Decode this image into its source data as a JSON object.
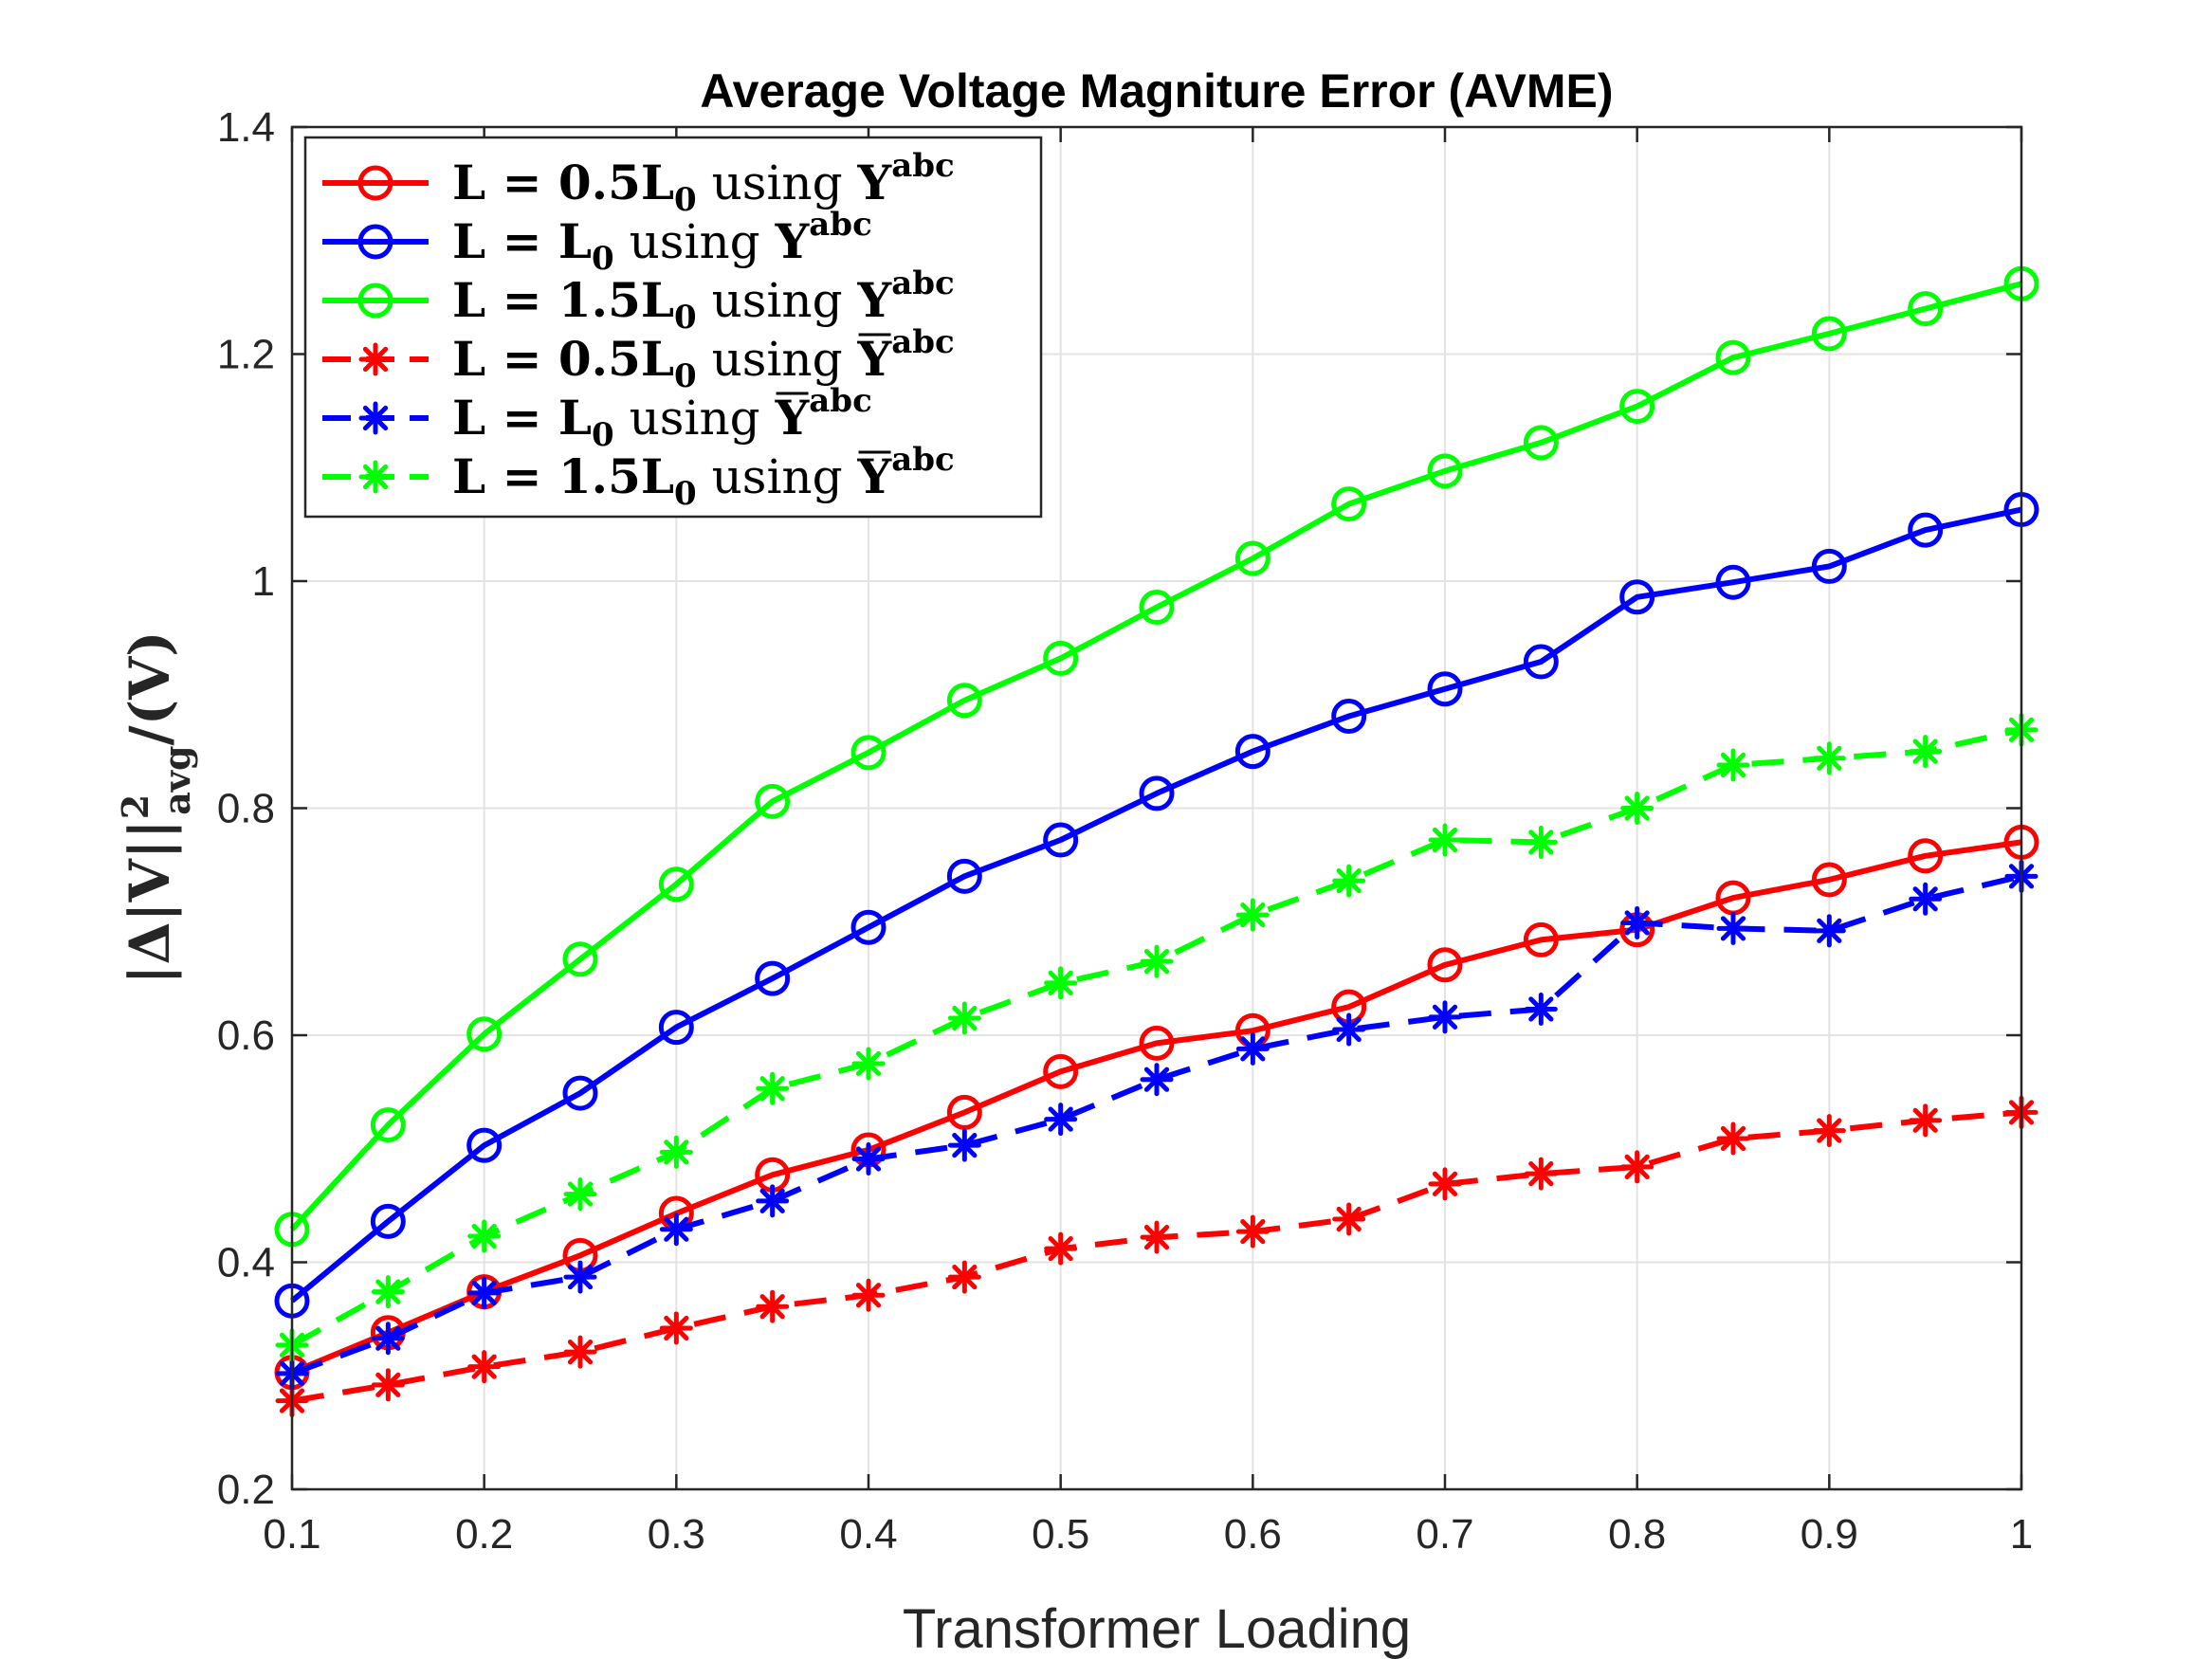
{
  "chart_data": {
    "type": "line",
    "title": "Average Voltage Magniture Error (AVME)",
    "xlabel": "Transformer Loading",
    "ylabel": "|Δ|V||²avg/(V)",
    "xlim": [
      0.1,
      1.0
    ],
    "ylim": [
      0.2,
      1.4
    ],
    "xticks": [
      "0.1",
      "0.2",
      "0.3",
      "0.4",
      "0.5",
      "0.6",
      "0.7",
      "0.8",
      "0.9",
      "1"
    ],
    "yticks": [
      "0.2",
      "0.4",
      "0.6",
      "0.8",
      "1",
      "1.2",
      "1.4"
    ],
    "grid": true,
    "legend_position": "top-left",
    "x": [
      0.1,
      0.15,
      0.2,
      0.25,
      0.3,
      0.35,
      0.4,
      0.45,
      0.5,
      0.55,
      0.6,
      0.65,
      0.7,
      0.75,
      0.8,
      0.85,
      0.9,
      0.95,
      1.0
    ],
    "series": [
      {
        "name": "L = 0.5L0 using Yabc",
        "legend": {
          "pre": "L = 0.5L",
          "sub": "0",
          "mid": " using ",
          "post": "Y",
          "sup": "abc",
          "overline": false
        },
        "color": "#ff0000",
        "line": "solid",
        "marker": "circle",
        "values": [
          0.303,
          0.338,
          0.374,
          0.406,
          0.443,
          0.477,
          0.499,
          0.532,
          0.568,
          0.593,
          0.604,
          0.625,
          0.662,
          0.684,
          0.693,
          0.721,
          0.737,
          0.758,
          0.77
        ]
      },
      {
        "name": "L = L0 using Yabc",
        "legend": {
          "pre": "L = L",
          "sub": "0",
          "mid": " using ",
          "post": "Y",
          "sup": "abc",
          "overline": false
        },
        "color": "#0000ff",
        "line": "solid",
        "marker": "circle",
        "values": [
          0.366,
          0.436,
          0.503,
          0.549,
          0.607,
          0.65,
          0.695,
          0.74,
          0.772,
          0.813,
          0.85,
          0.881,
          0.905,
          0.929,
          0.986,
          0.999,
          1.013,
          1.045,
          1.063
        ]
      },
      {
        "name": "L = 1.5L0 using Yabc",
        "legend": {
          "pre": "L = 1.5L",
          "sub": "0",
          "mid": " using ",
          "post": "Y",
          "sup": "abc",
          "overline": false
        },
        "color": "#00ff00",
        "line": "solid",
        "marker": "circle",
        "values": [
          0.429,
          0.521,
          0.601,
          0.667,
          0.733,
          0.806,
          0.849,
          0.895,
          0.932,
          0.977,
          1.02,
          1.068,
          1.097,
          1.122,
          1.154,
          1.197,
          1.218,
          1.24,
          1.262
        ]
      },
      {
        "name": "L = 0.5L0 using Ȳabc",
        "legend": {
          "pre": "L = 0.5L",
          "sub": "0",
          "mid": " using ",
          "post": "Y",
          "sup": "abc",
          "overline": true
        },
        "color": "#ff0000",
        "line": "dashed",
        "marker": "star",
        "values": [
          0.278,
          0.292,
          0.308,
          0.321,
          0.342,
          0.361,
          0.371,
          0.387,
          0.412,
          0.422,
          0.427,
          0.438,
          0.469,
          0.478,
          0.484,
          0.509,
          0.516,
          0.525,
          0.532
        ]
      },
      {
        "name": "L = L0 using Ȳabc",
        "legend": {
          "pre": "L = L",
          "sub": "0",
          "mid": " using ",
          "post": "Y",
          "sup": "abc",
          "overline": true
        },
        "color": "#0000ff",
        "line": "dashed",
        "marker": "star",
        "values": [
          0.302,
          0.333,
          0.373,
          0.387,
          0.429,
          0.454,
          0.491,
          0.503,
          0.526,
          0.561,
          0.588,
          0.605,
          0.616,
          0.623,
          0.699,
          0.694,
          0.692,
          0.72,
          0.74
        ]
      },
      {
        "name": "L = 1.5L0 using Ȳabc",
        "legend": {
          "pre": "L = 1.5L",
          "sub": "0",
          "mid": " using ",
          "post": "Y",
          "sup": "abc",
          "overline": true
        },
        "color": "#00ff00",
        "line": "dashed",
        "marker": "star",
        "values": [
          0.327,
          0.374,
          0.423,
          0.46,
          0.497,
          0.553,
          0.575,
          0.615,
          0.646,
          0.665,
          0.706,
          0.736,
          0.772,
          0.77,
          0.8,
          0.838,
          0.844,
          0.85,
          0.869
        ]
      }
    ]
  }
}
